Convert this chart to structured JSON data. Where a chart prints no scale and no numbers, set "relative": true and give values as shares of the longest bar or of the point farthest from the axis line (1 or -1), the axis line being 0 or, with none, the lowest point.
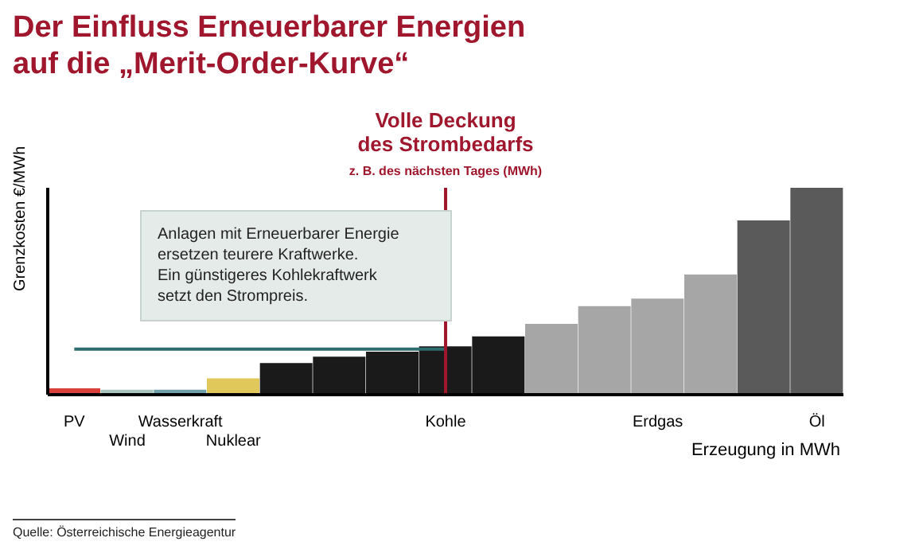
{
  "chart_data": {
    "type": "bar",
    "title": "Der Einfluss Erneuerbarer Energien\nauf die „Merit-Order-Kurve“",
    "xlabel": "Erzeugung in MWh",
    "ylabel": "Grenzkosten €/MWh",
    "relative": true,
    "legend": false,
    "grid": false,
    "categories": [
      "PV",
      "Wind",
      "Wasserkraft",
      "Nuklear",
      null,
      null,
      null,
      "Kohle",
      null,
      null,
      null,
      "Erdgas",
      null,
      null,
      "Öl"
    ],
    "values": [
      0.031,
      0.024,
      0.024,
      0.079,
      0.153,
      0.184,
      0.208,
      0.234,
      0.282,
      0.342,
      0.428,
      0.464,
      0.581,
      0.842,
      1
    ],
    "colors": [
      "#d9403a",
      "#a8c4bc",
      "#6f9fa8",
      "#e0c85a",
      "#1a1a1a",
      "#1a1a1a",
      "#1a1a1a",
      "#1a1a1a",
      "#1a1a1a",
      "#a6a6a6",
      "#a6a6a6",
      "#a6a6a6",
      "#a6a6a6",
      "#5a5a5a",
      "#5a5a5a"
    ],
    "ref_lines": [
      {
        "axis": "x",
        "value": "Kohle",
        "label": "Volle Deckung\ndes Strombedarfs",
        "color": "#a0172d"
      },
      {
        "axis": "y",
        "value": 0.22,
        "color": "#2c6e6e"
      }
    ],
    "annotations": [
      "Anlagen mit Erneuerbarer Energie\nersetzen teurere Kraftwerke.\nEin günstigeres Kohlekraftwerk\nsetzt den Strompreis.",
      "z. B. des nächsten Tages (MWh)",
      "Quelle: Österreichische Energieagentur"
    ]
  }
}
